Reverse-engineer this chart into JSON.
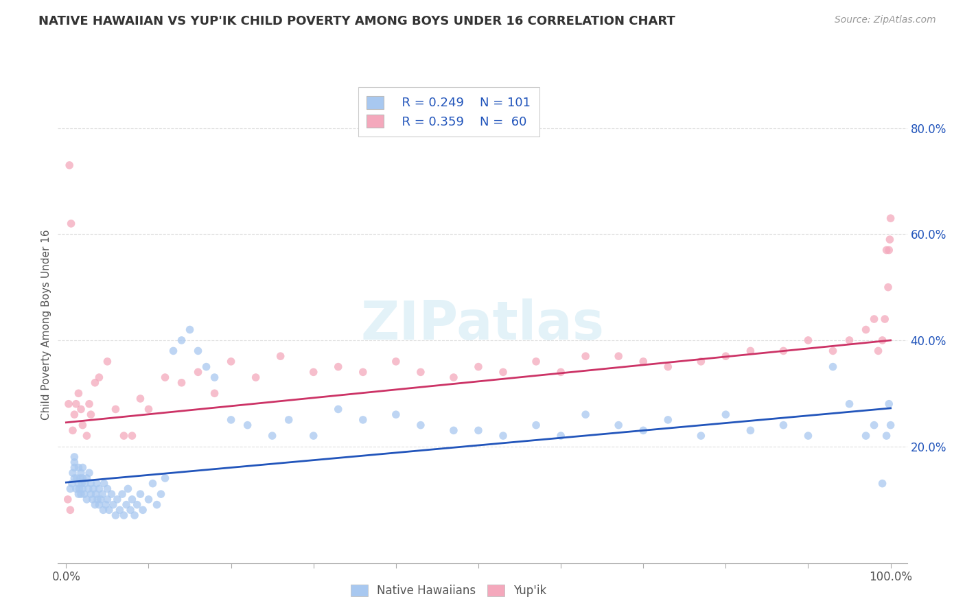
{
  "title": "NATIVE HAWAIIAN VS YUP'IK CHILD POVERTY AMONG BOYS UNDER 16 CORRELATION CHART",
  "source": "Source: ZipAtlas.com",
  "ylabel": "Child Poverty Among Boys Under 16",
  "ytick_vals": [
    0.2,
    0.4,
    0.6,
    0.8
  ],
  "legend_r_blue": "R = 0.249",
  "legend_n_blue": "N = 101",
  "legend_r_pink": "R = 0.359",
  "legend_n_pink": "N =  60",
  "legend_label_blue": "Native Hawaiians",
  "legend_label_pink": "Yup'ik",
  "blue_color": "#a8c8f0",
  "pink_color": "#f4a8bc",
  "blue_line_color": "#2255bb",
  "pink_line_color": "#cc3366",
  "watermark": "ZIPatlas",
  "blue_x": [
    0.005,
    0.007,
    0.008,
    0.01,
    0.01,
    0.01,
    0.01,
    0.012,
    0.013,
    0.015,
    0.015,
    0.015,
    0.016,
    0.017,
    0.018,
    0.018,
    0.019,
    0.02,
    0.02,
    0.02,
    0.022,
    0.023,
    0.025,
    0.025,
    0.027,
    0.028,
    0.03,
    0.03,
    0.032,
    0.033,
    0.035,
    0.036,
    0.037,
    0.038,
    0.04,
    0.04,
    0.042,
    0.044,
    0.045,
    0.046,
    0.048,
    0.05,
    0.05,
    0.052,
    0.055,
    0.057,
    0.06,
    0.062,
    0.065,
    0.068,
    0.07,
    0.073,
    0.075,
    0.078,
    0.08,
    0.083,
    0.086,
    0.09,
    0.093,
    0.1,
    0.105,
    0.11,
    0.115,
    0.12,
    0.13,
    0.14,
    0.15,
    0.16,
    0.17,
    0.18,
    0.2,
    0.22,
    0.25,
    0.27,
    0.3,
    0.33,
    0.36,
    0.4,
    0.43,
    0.47,
    0.5,
    0.53,
    0.57,
    0.6,
    0.63,
    0.67,
    0.7,
    0.73,
    0.77,
    0.8,
    0.83,
    0.87,
    0.9,
    0.93,
    0.95,
    0.97,
    0.98,
    0.99,
    0.995,
    0.998,
    1.0
  ],
  "blue_y": [
    0.12,
    0.13,
    0.15,
    0.14,
    0.16,
    0.17,
    0.18,
    0.12,
    0.14,
    0.11,
    0.13,
    0.16,
    0.12,
    0.14,
    0.11,
    0.15,
    0.13,
    0.12,
    0.14,
    0.16,
    0.11,
    0.13,
    0.1,
    0.14,
    0.12,
    0.15,
    0.11,
    0.13,
    0.1,
    0.12,
    0.09,
    0.11,
    0.13,
    0.1,
    0.09,
    0.12,
    0.1,
    0.11,
    0.08,
    0.13,
    0.09,
    0.1,
    0.12,
    0.08,
    0.11,
    0.09,
    0.07,
    0.1,
    0.08,
    0.11,
    0.07,
    0.09,
    0.12,
    0.08,
    0.1,
    0.07,
    0.09,
    0.11,
    0.08,
    0.1,
    0.13,
    0.09,
    0.11,
    0.14,
    0.38,
    0.4,
    0.42,
    0.38,
    0.35,
    0.33,
    0.25,
    0.24,
    0.22,
    0.25,
    0.22,
    0.27,
    0.25,
    0.26,
    0.24,
    0.23,
    0.23,
    0.22,
    0.24,
    0.22,
    0.26,
    0.24,
    0.23,
    0.25,
    0.22,
    0.26,
    0.23,
    0.24,
    0.22,
    0.35,
    0.28,
    0.22,
    0.24,
    0.13,
    0.22,
    0.28,
    0.24
  ],
  "pink_x": [
    0.005,
    0.008,
    0.01,
    0.012,
    0.015,
    0.018,
    0.02,
    0.025,
    0.028,
    0.03,
    0.035,
    0.04,
    0.05,
    0.06,
    0.07,
    0.08,
    0.09,
    0.1,
    0.12,
    0.14,
    0.16,
    0.18,
    0.2,
    0.23,
    0.26,
    0.3,
    0.33,
    0.36,
    0.4,
    0.43,
    0.47,
    0.5,
    0.53,
    0.57,
    0.6,
    0.63,
    0.67,
    0.7,
    0.73,
    0.77,
    0.8,
    0.83,
    0.87,
    0.9,
    0.93,
    0.95,
    0.97,
    0.98,
    0.985,
    0.99,
    0.993,
    0.995,
    0.997,
    0.998,
    0.999,
    1.0,
    0.002,
    0.003,
    0.004,
    0.006
  ],
  "pink_y": [
    0.08,
    0.23,
    0.26,
    0.28,
    0.3,
    0.27,
    0.24,
    0.22,
    0.28,
    0.26,
    0.32,
    0.33,
    0.36,
    0.27,
    0.22,
    0.22,
    0.29,
    0.27,
    0.33,
    0.32,
    0.34,
    0.3,
    0.36,
    0.33,
    0.37,
    0.34,
    0.35,
    0.34,
    0.36,
    0.34,
    0.33,
    0.35,
    0.34,
    0.36,
    0.34,
    0.37,
    0.37,
    0.36,
    0.35,
    0.36,
    0.37,
    0.38,
    0.38,
    0.4,
    0.38,
    0.4,
    0.42,
    0.44,
    0.38,
    0.4,
    0.44,
    0.57,
    0.5,
    0.57,
    0.59,
    0.63,
    0.1,
    0.28,
    0.73,
    0.62
  ]
}
